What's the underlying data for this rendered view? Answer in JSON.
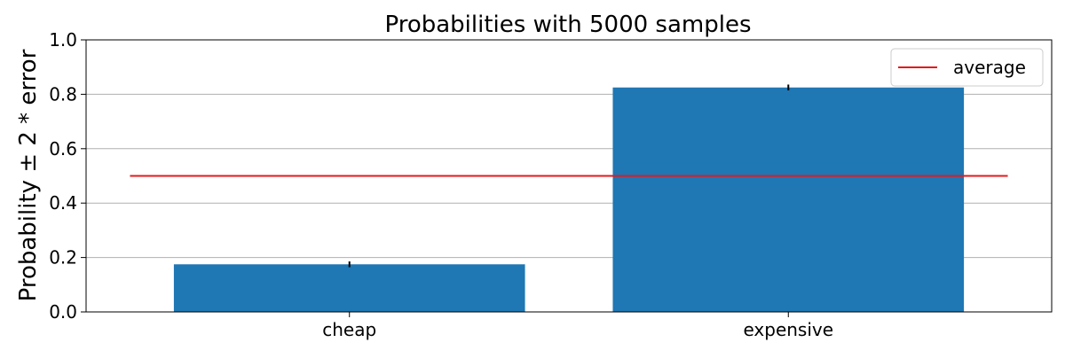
{
  "chart_data": {
    "type": "bar",
    "title": "Probabilities with 5000 samples",
    "xlabel": "",
    "ylabel": "Probability ± 2 * error",
    "categories": [
      "cheap",
      "expensive"
    ],
    "values": [
      0.175,
      0.825
    ],
    "errors": [
      0.0107,
      0.0107
    ],
    "ylim": [
      0,
      1.0
    ],
    "yticks": [
      0.0,
      0.2,
      0.4,
      0.6,
      0.8,
      1.0
    ],
    "ytick_labels": [
      "0.0",
      "0.2",
      "0.4",
      "0.6",
      "0.8",
      "1.0"
    ],
    "grid": "y",
    "bar_color": "#1f77b4",
    "error_color": "#000000",
    "reference_line": {
      "name": "average",
      "value": 0.5,
      "color": "#e41a1c"
    },
    "legend": {
      "position": "top-right",
      "entries": [
        "average"
      ]
    }
  }
}
